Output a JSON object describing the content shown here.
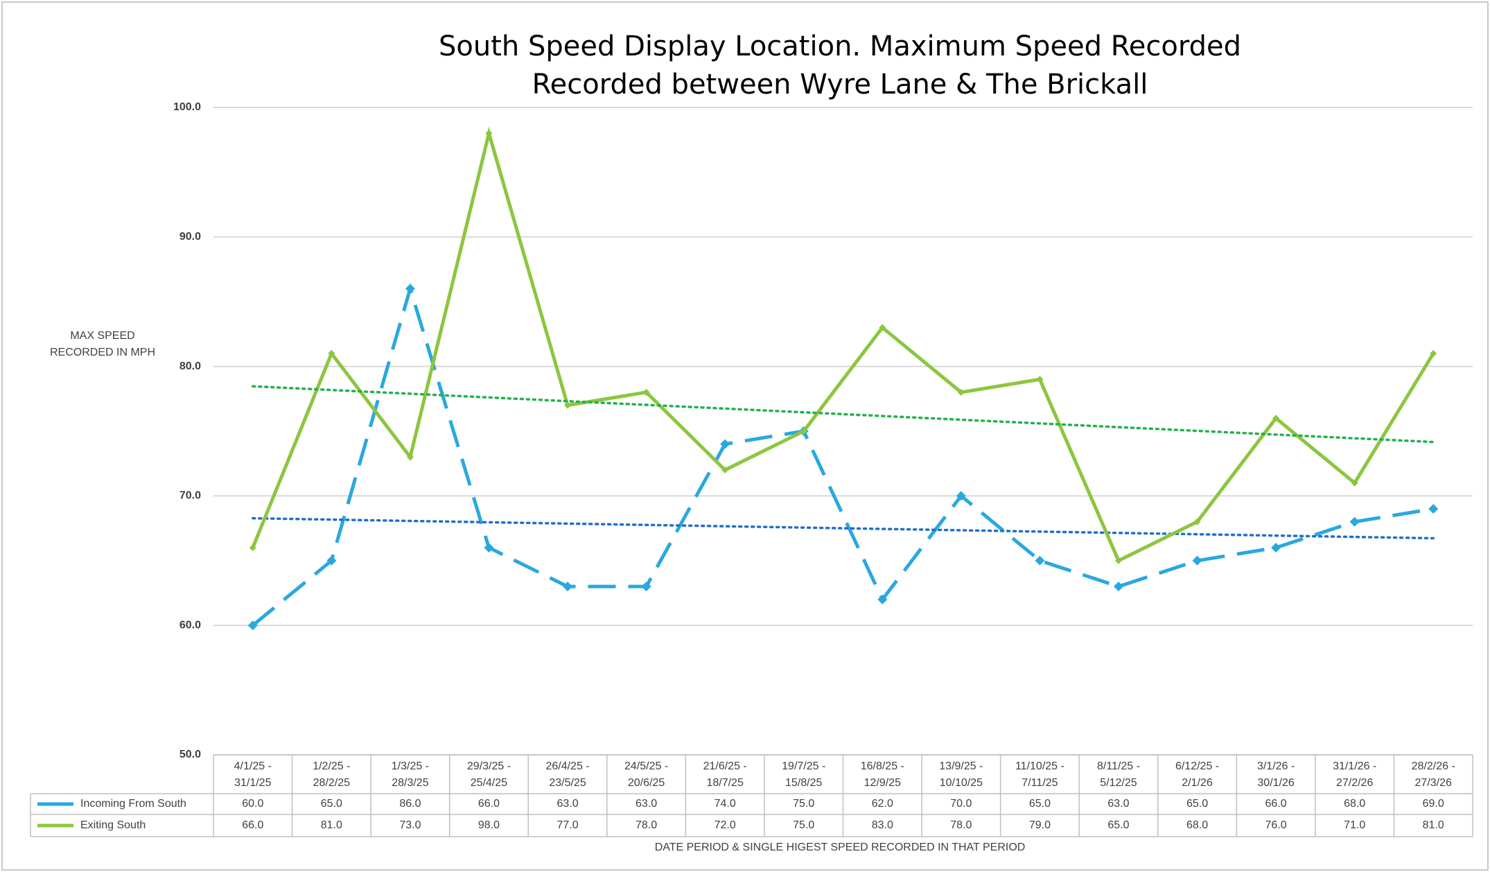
{
  "chart_data": {
    "type": "line",
    "title": [
      "South Speed Display Location. Maximum Speed Recorded",
      "Recorded between Wyre Lane & The Brickall"
    ],
    "ylabel": [
      "MAX SPEED",
      "RECORDED IN MPH"
    ],
    "xlabel": "DATE PERIOD & SINGLE HIGEST SPEED RECORDED IN THAT PERIOD",
    "categories": [
      "4/1/25 - 31/1/25",
      "1/2/25 - 28/2/25",
      "1/3/25 - 28/3/25",
      "29/3/25 - 25/4/25",
      "26/4/25 - 23/5/25",
      "24/5/25 - 20/6/25",
      "21/6/25 - 18/7/25",
      "19/7/25 - 15/8/25",
      "16/8/25 - 12/9/25",
      "13/9/25 - 10/10/25",
      "11/10/25 - 7/11/25",
      "8/11/25 - 5/12/25",
      "6/12/25 - 2/1/26",
      "3/1/26 - 30/1/26",
      "31/1/26 - 27/2/26",
      "28/2/26 - 27/3/26"
    ],
    "series": [
      {
        "name": "Incoming From South",
        "color": "#29a8e0",
        "dashed": true,
        "trendline_color": "#1f6fc8",
        "values": [
          60,
          65,
          86,
          66,
          63,
          63,
          74,
          75,
          62,
          70,
          65,
          63,
          65,
          66,
          68,
          69
        ],
        "value_labels": [
          "60.0",
          "65.0",
          "86.0",
          "66.0",
          "63.0",
          "63.0",
          "74.0",
          "75.0",
          "62.0",
          "70.0",
          "65.0",
          "63.0",
          "65.0",
          "66.0",
          "68.0",
          "69.0"
        ]
      },
      {
        "name": "Exiting South",
        "color": "#8cc63f",
        "dashed": false,
        "trendline_color": "#22b14c",
        "values": [
          66,
          81,
          73,
          98,
          77,
          78,
          72,
          75,
          83,
          78,
          79,
          65,
          68,
          76,
          71,
          81
        ],
        "value_labels": [
          "66.0",
          "81.0",
          "73.0",
          "98.0",
          "77.0",
          "78.0",
          "72.0",
          "75.0",
          "83.0",
          "78.0",
          "79.0",
          "65.0",
          "68.0",
          "76.0",
          "71.0",
          "81.0"
        ]
      }
    ],
    "ylim": [
      50,
      100
    ],
    "yticks": [
      {
        "value": 50,
        "label": "50.0"
      },
      {
        "value": 60,
        "label": "60.0"
      },
      {
        "value": 70,
        "label": "70.0"
      },
      {
        "value": 80,
        "label": "80.0"
      },
      {
        "value": 90,
        "label": "90.0"
      },
      {
        "value": 100,
        "label": "100.0"
      }
    ],
    "grid": true,
    "trendline": true,
    "data_table": true
  }
}
